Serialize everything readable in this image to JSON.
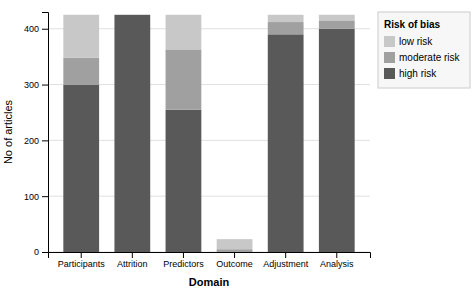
{
  "chart_data": {
    "type": "bar",
    "stacked": true,
    "categories": [
      "Participants",
      "Attrition",
      "Predictors",
      "Outcome",
      "Adjustment",
      "Analysis"
    ],
    "series": [
      {
        "name": "high risk",
        "color": "#595959",
        "values": [
          300,
          425,
          255,
          0,
          390,
          400
        ]
      },
      {
        "name": "moderate risk",
        "color": "#a0a0a0",
        "values": [
          48,
          0,
          108,
          5,
          22,
          15
        ]
      },
      {
        "name": "low risk",
        "color": "#c8c8c8",
        "values": [
          77,
          0,
          62,
          18,
          13,
          10
        ]
      }
    ],
    "xlabel": "Domain",
    "ylabel": "No of articles",
    "ylim": [
      0,
      430
    ],
    "yticks": [
      0,
      100,
      200,
      300,
      400
    ],
    "grid": true,
    "legend": "right",
    "legend_title": "Risk of bias"
  }
}
